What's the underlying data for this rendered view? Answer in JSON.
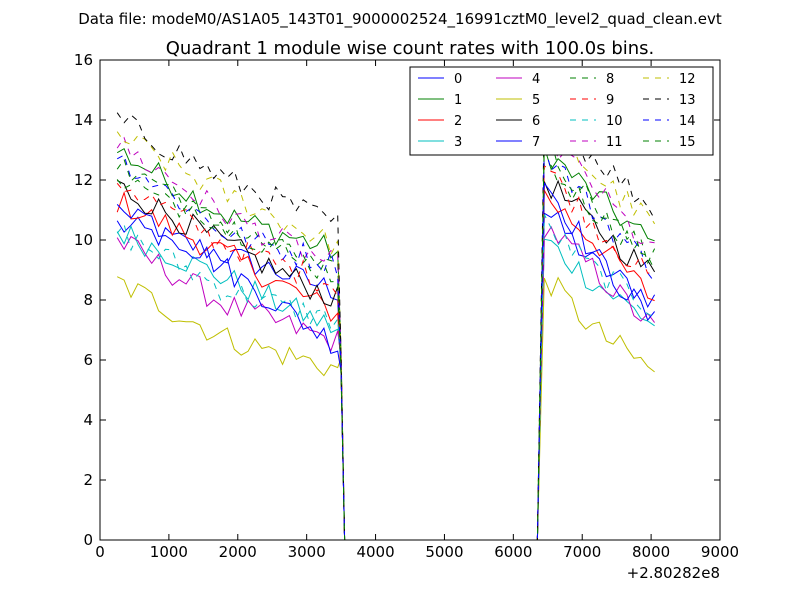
{
  "figure": {
    "suptitle": "Data file: modeM0/AS1A05_143T01_9000002524_16991cztM0_level2_quad_clean.evt",
    "title": "Quadrant 1 module wise count rates with 100.0s bins.",
    "x_offset_label": "+2.80282e8"
  },
  "chart_data": {
    "type": "line",
    "title": "Quadrant 1 module wise count rates with 100.0s bins.",
    "xlabel": "",
    "ylabel": "",
    "x_offset": "+2.80282e8",
    "xlim": [
      0,
      9000
    ],
    "ylim": [
      0,
      16
    ],
    "xticks": [
      0,
      1000,
      2000,
      3000,
      4000,
      5000,
      6000,
      7000,
      8000,
      9000
    ],
    "yticks": [
      0,
      2,
      4,
      6,
      8,
      10,
      12,
      14,
      16
    ],
    "grid": false,
    "legend_position": "top-right",
    "legend_columns": 4,
    "x_ranges": {
      "segment1": {
        "start": 250,
        "end": 3450,
        "step": 100
      },
      "gap": {
        "start": 3550,
        "end": 6350,
        "value": 0
      },
      "segment2": {
        "start": 6450,
        "end": 8050,
        "step": 100
      }
    },
    "series": [
      {
        "name": "0",
        "color": "#0000ff",
        "dash": "solid",
        "level1": [
          10.5,
          9.5,
          8.3
        ],
        "level2": [
          11.0,
          9.2,
          8.0
        ]
      },
      {
        "name": "1",
        "color": "#008000",
        "dash": "solid",
        "level1": [
          13.0,
          10.8,
          9.6
        ],
        "level2": [
          13.0,
          11.5,
          9.8
        ]
      },
      {
        "name": "2",
        "color": "#ff0000",
        "dash": "solid",
        "level1": [
          11.3,
          9.5,
          7.5
        ],
        "level2": [
          11.5,
          10.0,
          8.0
        ]
      },
      {
        "name": "3",
        "color": "#00bfbf",
        "dash": "solid",
        "level1": [
          10.3,
          8.7,
          7.0
        ],
        "level2": [
          10.0,
          8.6,
          7.2
        ]
      },
      {
        "name": "4",
        "color": "#bf00bf",
        "dash": "solid",
        "level1": [
          10.0,
          7.8,
          6.6
        ],
        "level2": [
          10.5,
          9.0,
          7.0
        ]
      },
      {
        "name": "5",
        "color": "#bfbf00",
        "dash": "solid",
        "level1": [
          8.6,
          6.7,
          5.7
        ],
        "level2": [
          8.8,
          7.0,
          5.6
        ]
      },
      {
        "name": "6",
        "color": "#000000",
        "dash": "solid",
        "level1": [
          11.8,
          9.8,
          8.0
        ],
        "level2": [
          12.0,
          10.5,
          8.8
        ]
      },
      {
        "name": "7",
        "color": "#0000ff",
        "dash": "solid",
        "level1": [
          11.4,
          9.0,
          6.5
        ],
        "level2": [
          12.0,
          9.5,
          7.2
        ]
      },
      {
        "name": "8",
        "color": "#008000",
        "dash": "dashed",
        "level1": [
          12.2,
          10.4,
          8.8
        ],
        "level2": [
          12.5,
          11.0,
          9.3
        ]
      },
      {
        "name": "9",
        "color": "#ff0000",
        "dash": "dashed",
        "level1": [
          12.0,
          9.8,
          8.5
        ],
        "level2": [
          12.5,
          10.5,
          8.6
        ]
      },
      {
        "name": "10",
        "color": "#00bfbf",
        "dash": "dashed",
        "level1": [
          10.3,
          8.3,
          7.3
        ],
        "level2": [
          10.5,
          9.0,
          7.7
        ]
      },
      {
        "name": "11",
        "color": "#bf00bf",
        "dash": "dashed",
        "level1": [
          13.2,
          10.8,
          9.1
        ],
        "level2": [
          13.5,
          11.8,
          9.5
        ]
      },
      {
        "name": "12",
        "color": "#bfbf00",
        "dash": "dashed",
        "level1": [
          13.5,
          11.5,
          9.8
        ],
        "level2": [
          14.0,
          12.2,
          10.5
        ]
      },
      {
        "name": "13",
        "color": "#000000",
        "dash": "dashed",
        "level1": [
          14.0,
          12.0,
          10.5
        ],
        "level2": [
          14.0,
          12.8,
          11.0
        ]
      },
      {
        "name": "14",
        "color": "#0000ff",
        "dash": "dashed",
        "level1": [
          12.8,
          10.2,
          9.2
        ],
        "level2": [
          13.0,
          11.0,
          9.0
        ]
      },
      {
        "name": "15",
        "color": "#008000",
        "dash": "dashed",
        "level1": [
          12.5,
          10.5,
          8.8
        ],
        "level2": [
          13.2,
          11.2,
          9.2
        ]
      }
    ]
  }
}
